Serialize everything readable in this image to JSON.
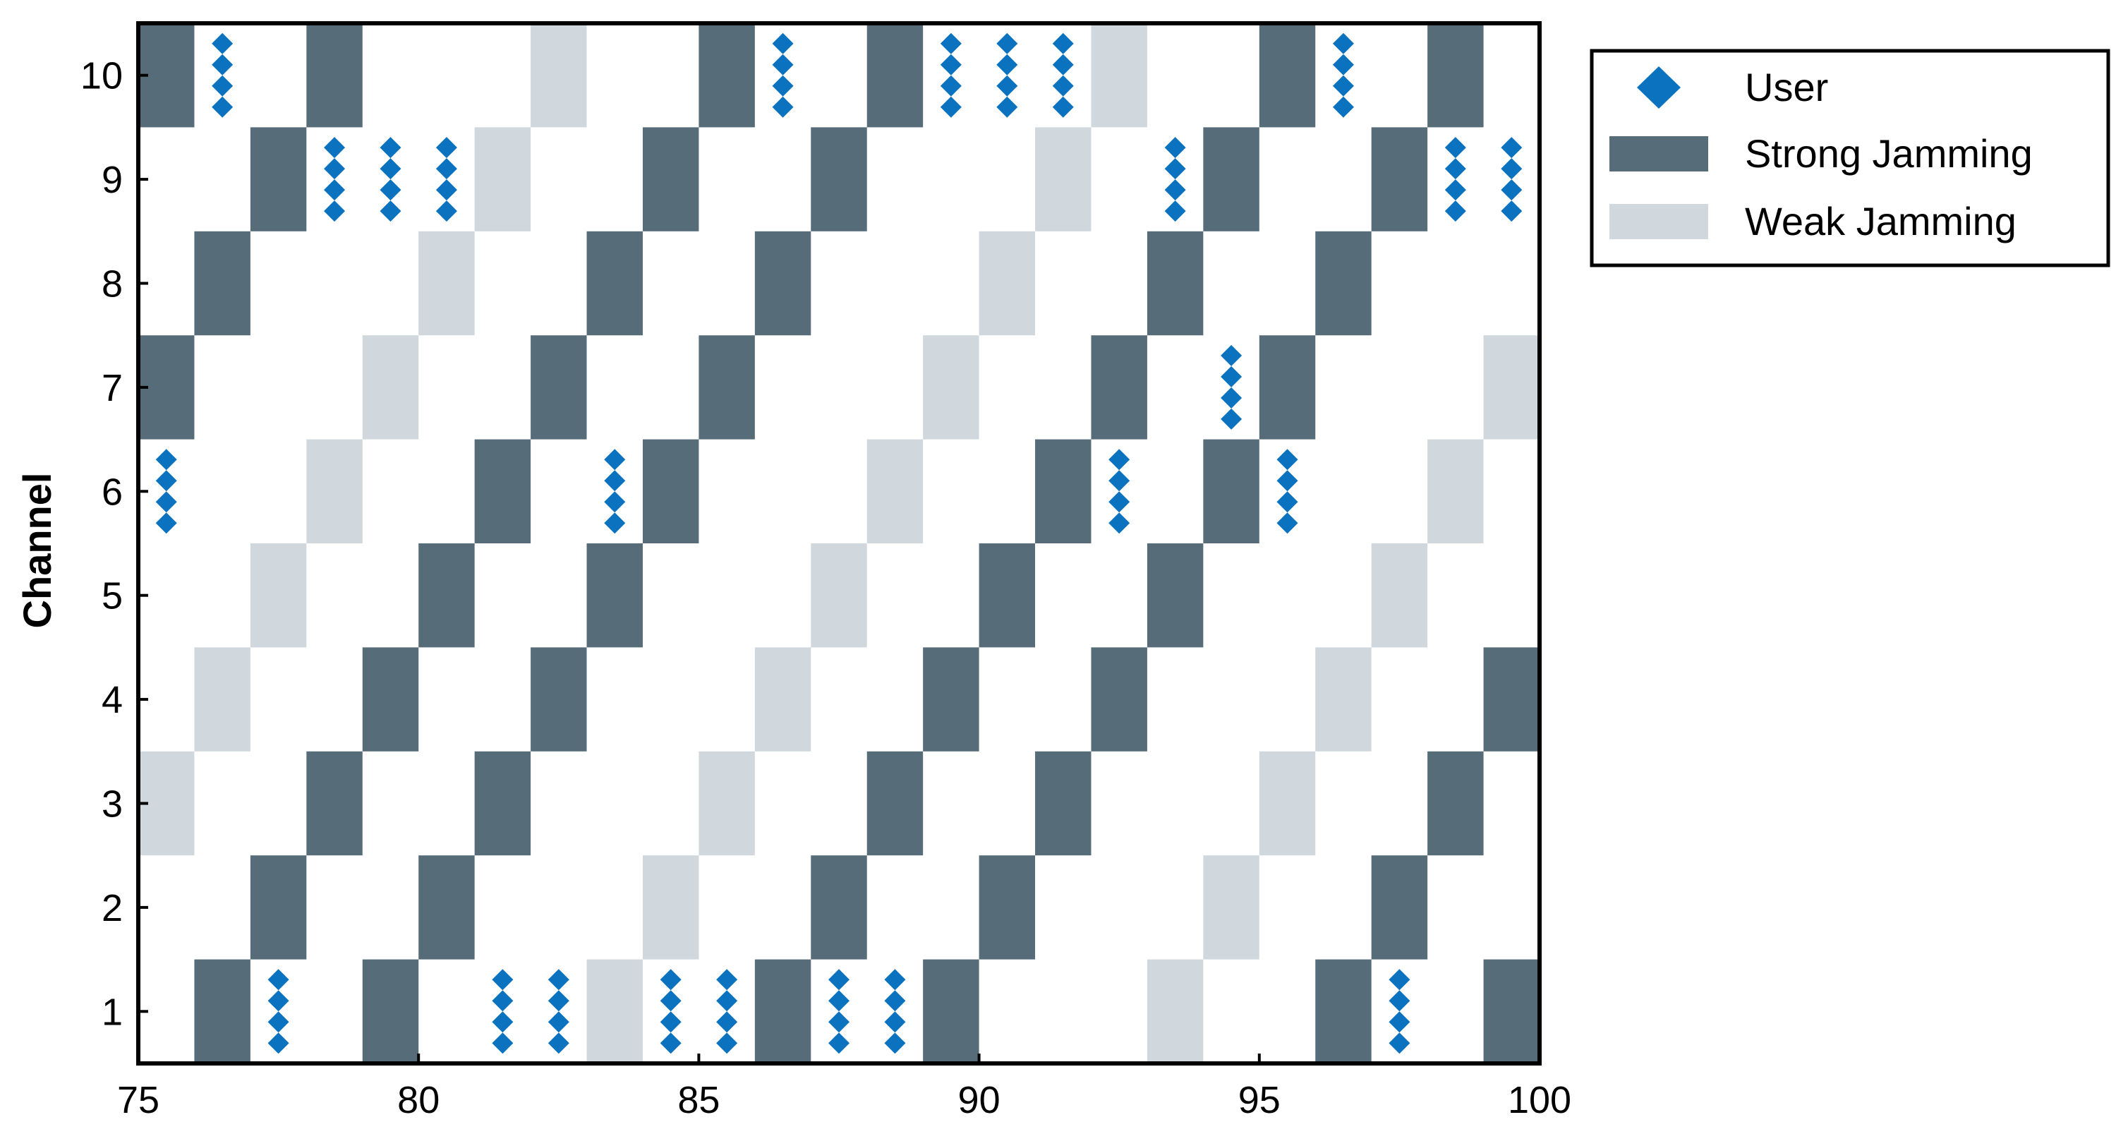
{
  "chart_data": {
    "type": "heatmap",
    "title": "",
    "xlabel": "",
    "ylabel": "Channel",
    "xlim": [
      75,
      100
    ],
    "ylim": [
      0.5,
      10.5
    ],
    "xticks": [
      75,
      80,
      85,
      90,
      95,
      100
    ],
    "yticks": [
      1,
      2,
      3,
      4,
      5,
      6,
      7,
      8,
      9,
      10
    ],
    "grid": false,
    "legend_position": "outside-top-right",
    "colors": {
      "user": "#0a72be",
      "strong": "#566c79",
      "weak": "#d0d8de"
    },
    "legend": [
      "User",
      "Strong Jamming",
      "Weak Jamming"
    ],
    "strong_jamming": [
      {
        "slot": 75,
        "channel": 10
      },
      {
        "slot": 75,
        "channel": 7
      },
      {
        "slot": 76,
        "channel": 8
      },
      {
        "slot": 76,
        "channel": 1
      },
      {
        "slot": 77,
        "channel": 9
      },
      {
        "slot": 77,
        "channel": 2
      },
      {
        "slot": 78,
        "channel": 10
      },
      {
        "slot": 78,
        "channel": 3
      },
      {
        "slot": 79,
        "channel": 4
      },
      {
        "slot": 79,
        "channel": 1
      },
      {
        "slot": 80,
        "channel": 5
      },
      {
        "slot": 80,
        "channel": 2
      },
      {
        "slot": 81,
        "channel": 6
      },
      {
        "slot": 81,
        "channel": 3
      },
      {
        "slot": 82,
        "channel": 7
      },
      {
        "slot": 82,
        "channel": 4
      },
      {
        "slot": 83,
        "channel": 8
      },
      {
        "slot": 83,
        "channel": 5
      },
      {
        "slot": 84,
        "channel": 9
      },
      {
        "slot": 84,
        "channel": 6
      },
      {
        "slot": 85,
        "channel": 10
      },
      {
        "slot": 85,
        "channel": 7
      },
      {
        "slot": 86,
        "channel": 8
      },
      {
        "slot": 86,
        "channel": 1
      },
      {
        "slot": 87,
        "channel": 9
      },
      {
        "slot": 87,
        "channel": 2
      },
      {
        "slot": 88,
        "channel": 10
      },
      {
        "slot": 88,
        "channel": 3
      },
      {
        "slot": 89,
        "channel": 4
      },
      {
        "slot": 89,
        "channel": 1
      },
      {
        "slot": 90,
        "channel": 5
      },
      {
        "slot": 90,
        "channel": 2
      },
      {
        "slot": 91,
        "channel": 6
      },
      {
        "slot": 91,
        "channel": 3
      },
      {
        "slot": 92,
        "channel": 7
      },
      {
        "slot": 92,
        "channel": 4
      },
      {
        "slot": 93,
        "channel": 8
      },
      {
        "slot": 93,
        "channel": 5
      },
      {
        "slot": 94,
        "channel": 9
      },
      {
        "slot": 94,
        "channel": 6
      },
      {
        "slot": 95,
        "channel": 10
      },
      {
        "slot": 95,
        "channel": 7
      },
      {
        "slot": 96,
        "channel": 8
      },
      {
        "slot": 96,
        "channel": 1
      },
      {
        "slot": 97,
        "channel": 9
      },
      {
        "slot": 97,
        "channel": 2
      },
      {
        "slot": 98,
        "channel": 10
      },
      {
        "slot": 98,
        "channel": 3
      },
      {
        "slot": 99,
        "channel": 4
      },
      {
        "slot": 99,
        "channel": 1
      }
    ],
    "weak_jamming": [
      {
        "slot": 75,
        "channel": 3
      },
      {
        "slot": 76,
        "channel": 4
      },
      {
        "slot": 77,
        "channel": 5
      },
      {
        "slot": 78,
        "channel": 6
      },
      {
        "slot": 79,
        "channel": 7
      },
      {
        "slot": 80,
        "channel": 8
      },
      {
        "slot": 81,
        "channel": 9
      },
      {
        "slot": 82,
        "channel": 10
      },
      {
        "slot": 83,
        "channel": 1
      },
      {
        "slot": 84,
        "channel": 2
      },
      {
        "slot": 85,
        "channel": 3
      },
      {
        "slot": 86,
        "channel": 4
      },
      {
        "slot": 87,
        "channel": 5
      },
      {
        "slot": 88,
        "channel": 6
      },
      {
        "slot": 89,
        "channel": 7
      },
      {
        "slot": 90,
        "channel": 8
      },
      {
        "slot": 91,
        "channel": 9
      },
      {
        "slot": 92,
        "channel": 10
      },
      {
        "slot": 93,
        "channel": 1
      },
      {
        "slot": 94,
        "channel": 2
      },
      {
        "slot": 95,
        "channel": 3
      },
      {
        "slot": 96,
        "channel": 4
      },
      {
        "slot": 97,
        "channel": 5
      },
      {
        "slot": 98,
        "channel": 6
      },
      {
        "slot": 99,
        "channel": 7
      }
    ],
    "users": [
      {
        "slot": 75,
        "channel": 6
      },
      {
        "slot": 76,
        "channel": 10
      },
      {
        "slot": 77,
        "channel": 1
      },
      {
        "slot": 78,
        "channel": 9
      },
      {
        "slot": 79,
        "channel": 9
      },
      {
        "slot": 80,
        "channel": 9
      },
      {
        "slot": 81,
        "channel": 1
      },
      {
        "slot": 82,
        "channel": 1
      },
      {
        "slot": 83,
        "channel": 6
      },
      {
        "slot": 84,
        "channel": 1
      },
      {
        "slot": 85,
        "channel": 1
      },
      {
        "slot": 86,
        "channel": 10
      },
      {
        "slot": 87,
        "channel": 1
      },
      {
        "slot": 88,
        "channel": 1
      },
      {
        "slot": 89,
        "channel": 10
      },
      {
        "slot": 90,
        "channel": 10
      },
      {
        "slot": 91,
        "channel": 10
      },
      {
        "slot": 92,
        "channel": 6
      },
      {
        "slot": 93,
        "channel": 9
      },
      {
        "slot": 94,
        "channel": 7
      },
      {
        "slot": 95,
        "channel": 6
      },
      {
        "slot": 96,
        "channel": 10
      },
      {
        "slot": 97,
        "channel": 1
      },
      {
        "slot": 98,
        "channel": 9
      },
      {
        "slot": 99,
        "channel": 9
      }
    ]
  }
}
